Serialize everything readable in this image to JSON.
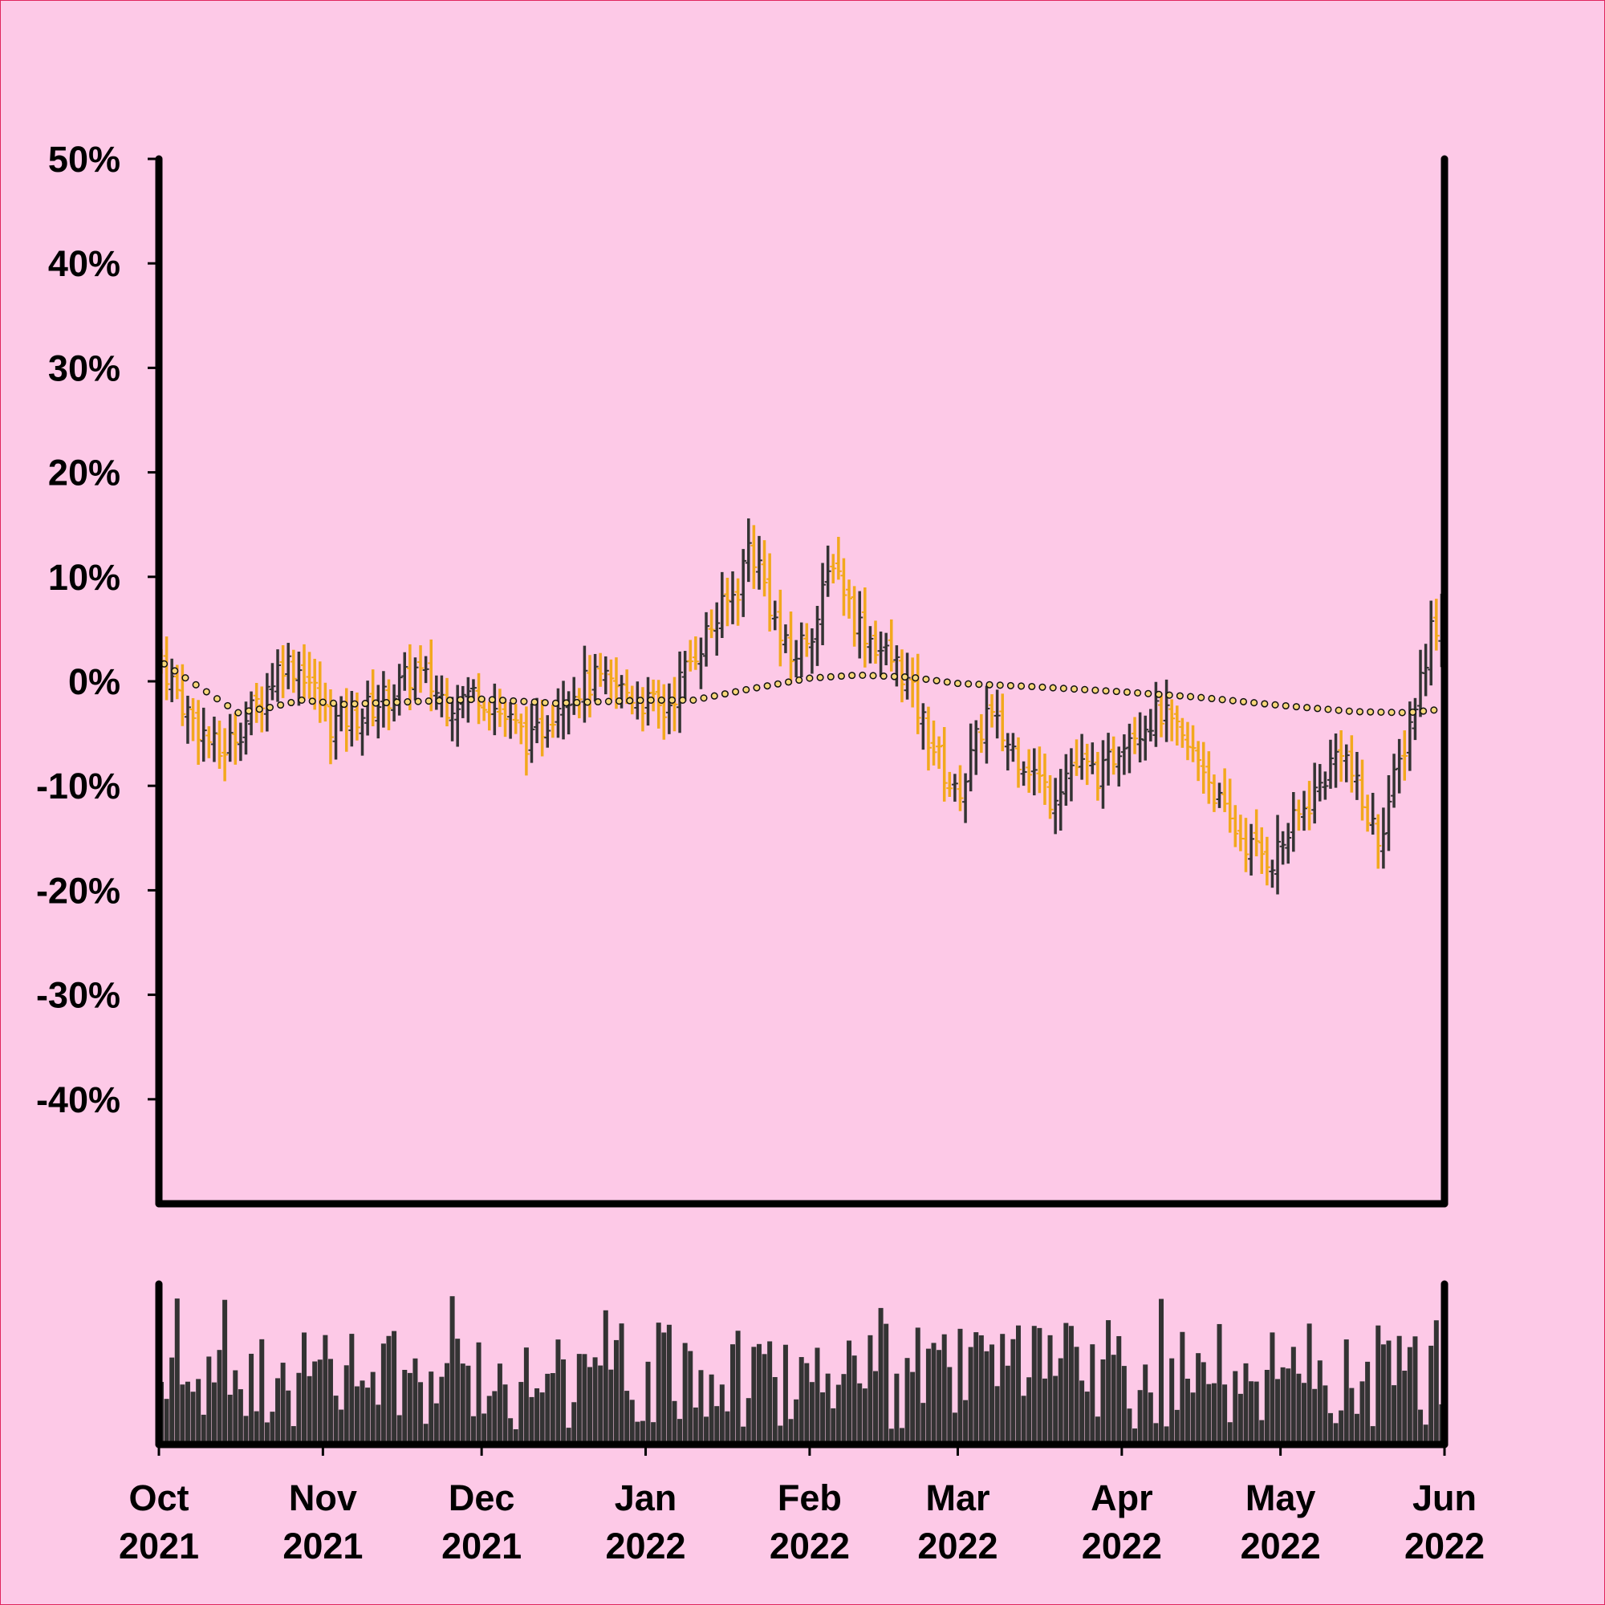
{
  "chart_data": [
    {
      "type": "ohlc",
      "title": "",
      "xlabel": "",
      "ylabel": "",
      "xlim": [
        "2021-10-01",
        "2022-06-01"
      ],
      "ylim": [
        -50,
        50
      ],
      "y_unit": "%",
      "y_ticks": [
        "50%",
        "40%",
        "30%",
        "20%",
        "10%",
        "0%",
        "-10%",
        "-20%",
        "-30%",
        "-40%"
      ],
      "x_ticks": [
        {
          "month": "Oct",
          "year": "2021"
        },
        {
          "month": "Nov",
          "year": "2021"
        },
        {
          "month": "Dec",
          "year": "2021"
        },
        {
          "month": "Jan",
          "year": "2022"
        },
        {
          "month": "Feb",
          "year": "2022"
        },
        {
          "month": "Mar",
          "year": "2022"
        },
        {
          "month": "Apr",
          "year": "2022"
        },
        {
          "month": "May",
          "year": "2022"
        },
        {
          "month": "Jun",
          "year": "2022"
        }
      ],
      "up_color": "#333333",
      "down_color": "#f2a81d",
      "close_anchors": [
        [
          "2021-10-01",
          2
        ],
        [
          "2021-10-06",
          -3
        ],
        [
          "2021-10-12",
          -7
        ],
        [
          "2021-10-18",
          -3
        ],
        [
          "2021-10-24",
          2
        ],
        [
          "2021-10-28",
          1
        ],
        [
          "2021-11-02",
          -4
        ],
        [
          "2021-11-08",
          -3
        ],
        [
          "2021-11-14",
          -1
        ],
        [
          "2021-11-18",
          1
        ],
        [
          "2021-11-24",
          -2
        ],
        [
          "2021-11-30",
          -1
        ],
        [
          "2021-12-06",
          -4
        ],
        [
          "2021-12-10",
          -6
        ],
        [
          "2021-12-16",
          -1
        ],
        [
          "2021-12-22",
          0
        ],
        [
          "2021-12-28",
          -1
        ],
        [
          "2022-01-04",
          -3
        ],
        [
          "2022-01-06",
          -1
        ],
        [
          "2022-01-10",
          3
        ],
        [
          "2022-01-14",
          6
        ],
        [
          "2022-01-18",
          9
        ],
        [
          "2022-01-20",
          13
        ],
        [
          "2022-01-22",
          11
        ],
        [
          "2022-01-26",
          4
        ],
        [
          "2022-01-28",
          2
        ],
        [
          "2022-02-02",
          6
        ],
        [
          "2022-02-05",
          12
        ],
        [
          "2022-02-09",
          6
        ],
        [
          "2022-02-14",
          3
        ],
        [
          "2022-02-18",
          1
        ],
        [
          "2022-02-22",
          -4
        ],
        [
          "2022-02-28",
          -11
        ],
        [
          "2022-03-02",
          -9
        ],
        [
          "2022-03-06",
          -3
        ],
        [
          "2022-03-10",
          -6
        ],
        [
          "2022-03-14",
          -8
        ],
        [
          "2022-03-18",
          -11
        ],
        [
          "2022-03-22",
          -8
        ],
        [
          "2022-03-28",
          -9
        ],
        [
          "2022-04-01",
          -5
        ],
        [
          "2022-04-08",
          -3
        ],
        [
          "2022-04-12",
          -6
        ],
        [
          "2022-04-16",
          -8
        ],
        [
          "2022-04-20",
          -13
        ],
        [
          "2022-04-25",
          -16
        ],
        [
          "2022-04-29",
          -17
        ],
        [
          "2022-05-04",
          -13
        ],
        [
          "2022-05-08",
          -10
        ],
        [
          "2022-05-12",
          -6
        ],
        [
          "2022-05-16",
          -12
        ],
        [
          "2022-05-19",
          -15
        ],
        [
          "2022-05-23",
          -8
        ],
        [
          "2022-05-26",
          -2
        ],
        [
          "2022-05-29",
          5
        ],
        [
          "2022-05-31",
          6
        ]
      ],
      "trend_anchors": [
        [
          "2021-10-01",
          2
        ],
        [
          "2021-10-10",
          -1
        ],
        [
          "2021-10-16",
          -3
        ],
        [
          "2021-10-22",
          -2.5
        ],
        [
          "2021-10-28",
          -1.8
        ],
        [
          "2021-11-05",
          -2.2
        ],
        [
          "2021-11-15",
          -2
        ],
        [
          "2021-12-01",
          -1.7
        ],
        [
          "2021-12-15",
          -2.1
        ],
        [
          "2022-01-01",
          -1.8
        ],
        [
          "2022-01-10",
          -1.8
        ],
        [
          "2022-01-20",
          -0.8
        ],
        [
          "2022-02-01",
          0.3
        ],
        [
          "2022-02-10",
          0.6
        ],
        [
          "2022-02-20",
          0.4
        ],
        [
          "2022-03-01",
          -0.2
        ],
        [
          "2022-03-15",
          -0.5
        ],
        [
          "2022-04-01",
          -1
        ],
        [
          "2022-04-15",
          -1.5
        ],
        [
          "2022-05-01",
          -2.3
        ],
        [
          "2022-05-15",
          -2.9
        ],
        [
          "2022-05-25",
          -3
        ],
        [
          "2022-05-31",
          -2.7
        ]
      ],
      "volume_range": [
        0,
        100
      ]
    }
  ]
}
